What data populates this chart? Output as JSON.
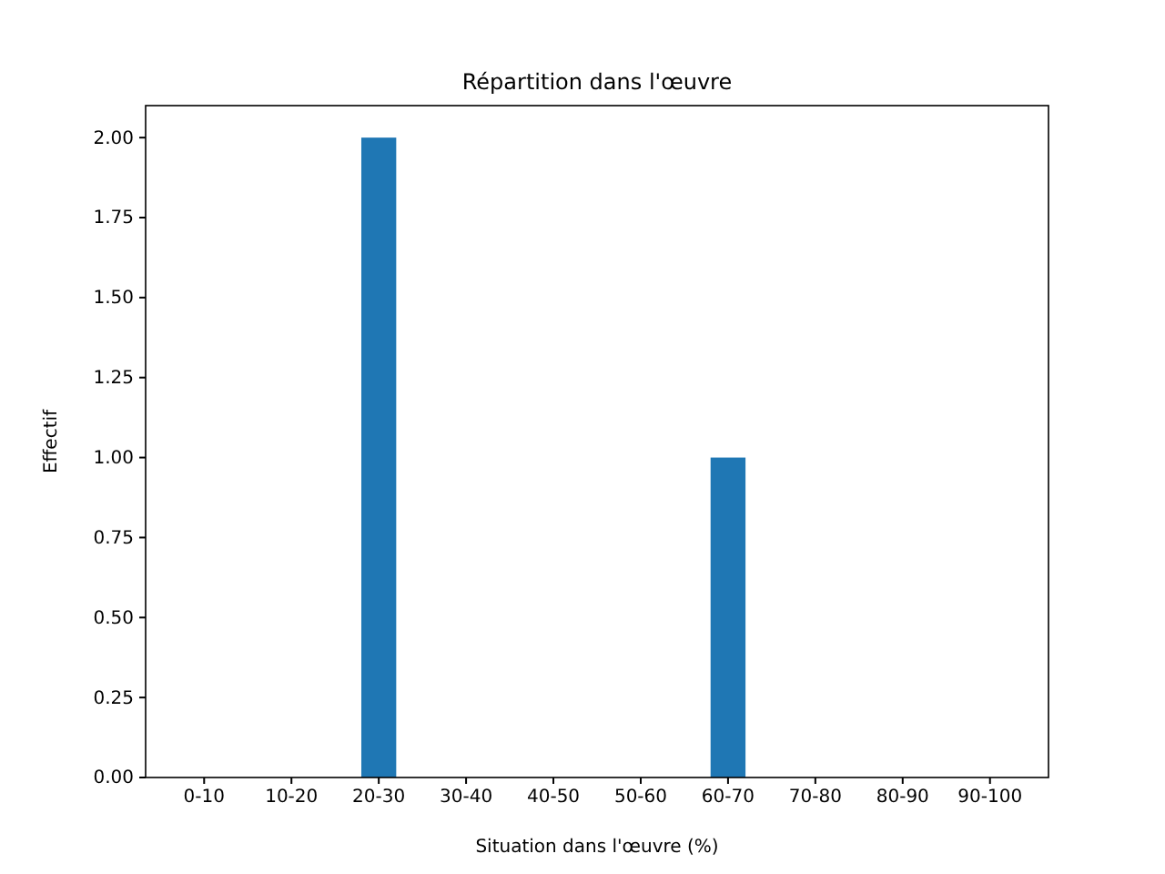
{
  "chart_data": {
    "type": "bar",
    "title": "Répartition dans l'œuvre",
    "xlabel": "Situation dans l'œuvre (%)",
    "ylabel": "Effectif",
    "categories": [
      "0-10",
      "10-20",
      "20-30",
      "30-40",
      "40-50",
      "50-60",
      "60-70",
      "70-80",
      "80-90",
      "90-100"
    ],
    "values": [
      0,
      0,
      2,
      0,
      0,
      0,
      1,
      0,
      0,
      0
    ],
    "color": "#1f77b4",
    "ylim": [
      0,
      2.1
    ],
    "yticks": [
      {
        "value": 0,
        "label": "0.00"
      },
      {
        "value": 0.25,
        "label": "0.25"
      },
      {
        "value": 0.5,
        "label": "0.50"
      },
      {
        "value": 0.75,
        "label": "0.75"
      },
      {
        "value": 1,
        "label": "1.00"
      },
      {
        "value": 1.25,
        "label": "1.25"
      },
      {
        "value": 1.5,
        "label": "1.50"
      },
      {
        "value": 1.75,
        "label": "1.75"
      },
      {
        "value": 2,
        "label": "2.00"
      }
    ],
    "grid": false
  }
}
